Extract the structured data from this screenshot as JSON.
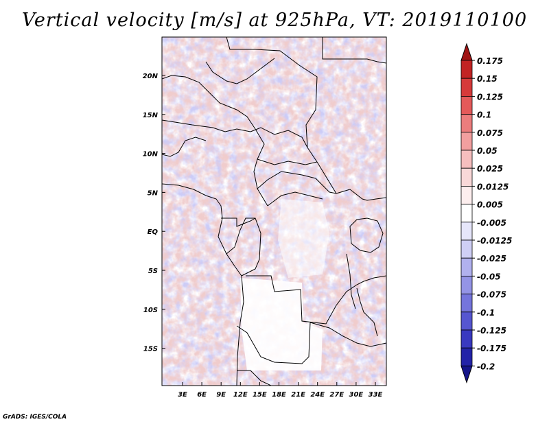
{
  "title": "Vertical velocity [m/s] at 925hPa, VT: 2019110100",
  "credit": "GrADS: IGES/COLA",
  "map": {
    "lat_labels": [
      "20N",
      "15N",
      "10N",
      "5N",
      "EQ",
      "5S",
      "10S",
      "15S"
    ],
    "lon_labels": [
      "3E",
      "6E",
      "9E",
      "12E",
      "15E",
      "18E",
      "21E",
      "24E",
      "27E",
      "30E",
      "33E"
    ]
  },
  "colorbar": {
    "labels": [
      "0.175",
      "0.15",
      "0.125",
      "0.1",
      "0.075",
      "0.05",
      "0.025",
      "0.0125",
      "0.005",
      "-0.005",
      "-0.0125",
      "-0.025",
      "-0.05",
      "-0.075",
      "-0.1",
      "-0.125",
      "-0.175",
      "-0.2"
    ],
    "colors": [
      "#a01313",
      "#c22323",
      "#d63a3a",
      "#e45a5a",
      "#ec7d7d",
      "#f29f9f",
      "#f6bebe",
      "#f9d8d8",
      "#fdeeee",
      "#ffffff",
      "#e6e6fa",
      "#cfcff5",
      "#b1b1ee",
      "#9494e6",
      "#7575dc",
      "#5656d0",
      "#3939c0",
      "#2323a8",
      "#15158a"
    ]
  }
}
